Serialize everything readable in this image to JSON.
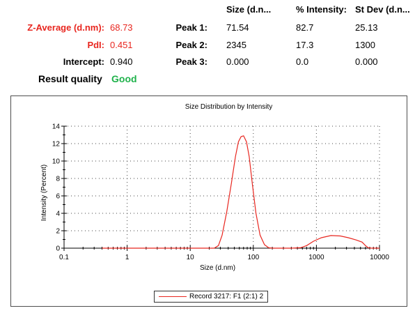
{
  "summary": {
    "z_average_label": "Z-Average (d.nm):",
    "z_average_value": "68.73",
    "pdi_label": "PdI:",
    "pdi_value": "0.451",
    "intercept_label": "Intercept:",
    "intercept_value": "0.940",
    "result_quality_label": "Result quality",
    "result_quality_value": "Good"
  },
  "peaks_table": {
    "headers": [
      "Size (d.n...",
      "% Intensity:",
      "St Dev (d.n..."
    ],
    "rows": [
      {
        "label": "Peak 1:",
        "size": "71.54",
        "intensity": "82.7",
        "stdev": "25.13"
      },
      {
        "label": "Peak 2:",
        "size": "2345",
        "intensity": "17.3",
        "stdev": "1300"
      },
      {
        "label": "Peak 3:",
        "size": "0.000",
        "intensity": "0.0",
        "stdev": "0.000"
      }
    ]
  },
  "colors": {
    "series_line": "#e8261f",
    "red_text": "#e8261f",
    "good_text": "#1fb24b",
    "axis": "#000000",
    "frame": "#4d4d4d"
  },
  "chart_data": {
    "type": "line",
    "title": "Size Distribution by Intensity",
    "xlabel": "Size (d.nm)",
    "ylabel": "Intensity (Percent)",
    "x_scale": "log",
    "xlim": [
      0.1,
      10000
    ],
    "ylim": [
      0,
      14
    ],
    "x_ticks": [
      0.1,
      1,
      10,
      100,
      1000,
      10000
    ],
    "x_tick_labels": [
      "0.1",
      "1",
      "10",
      "100",
      "1000",
      "10000"
    ],
    "y_ticks": [
      0,
      2,
      4,
      6,
      8,
      10,
      12,
      14
    ],
    "y_tick_labels": [
      "0",
      "2",
      "4",
      "6",
      "8",
      "10",
      "12",
      "14"
    ],
    "grid": "dotted",
    "legend_position": "bottom-center",
    "series": [
      {
        "name": "Record 3217: F1 (2:1) 2",
        "x": [
          0.4,
          1,
          5,
          15,
          24,
          28,
          32,
          38,
          45,
          52,
          58,
          64,
          70,
          78,
          86,
          96,
          110,
          128,
          150,
          175,
          200,
          260,
          400,
          560,
          700,
          900,
          1200,
          1700,
          2400,
          3200,
          4200,
          5300,
          6000,
          6600,
          7500,
          10000
        ],
        "y": [
          0,
          0,
          0,
          0,
          0,
          0.3,
          1.5,
          4.2,
          7.5,
          10.5,
          12.2,
          12.8,
          12.9,
          12.2,
          10.5,
          7.5,
          4.0,
          1.5,
          0.4,
          0.05,
          0,
          0,
          0,
          0.05,
          0.3,
          0.8,
          1.2,
          1.45,
          1.4,
          1.2,
          0.95,
          0.7,
          0.3,
          0.05,
          0,
          0
        ]
      }
    ]
  }
}
